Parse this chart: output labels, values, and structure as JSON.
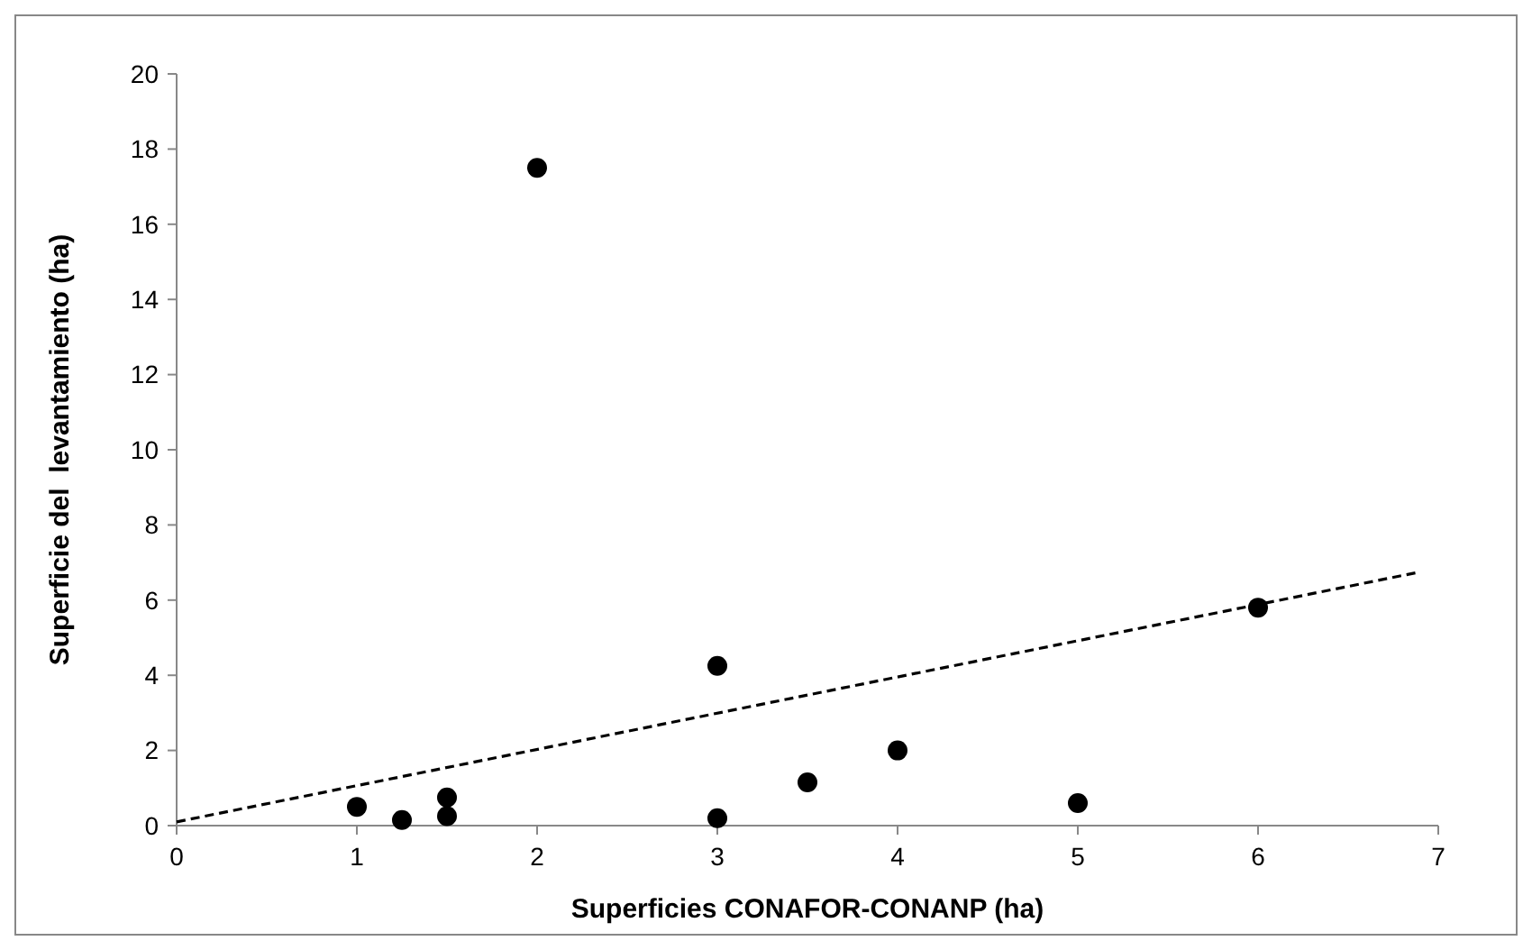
{
  "chart_data": {
    "type": "scatter",
    "xlabel": "Superficies CONAFOR-CONANP (ha)",
    "ylabel": "Superficie del  levantamiento (ha)",
    "xlim": [
      0,
      7
    ],
    "ylim": [
      0,
      20
    ],
    "xticks": [
      0,
      1,
      2,
      3,
      4,
      5,
      6,
      7
    ],
    "yticks": [
      0,
      2,
      4,
      6,
      8,
      10,
      12,
      14,
      16,
      18,
      20
    ],
    "grid": false,
    "marker": "circle",
    "series": [
      {
        "color": "#000000",
        "x": [
          1,
          1.25,
          1.5,
          1.5,
          2,
          3,
          3,
          3.5,
          4,
          5,
          6
        ],
        "values": [
          0.5,
          0.15,
          0.75,
          0.25,
          17.5,
          4.25,
          0.2,
          1.15,
          2,
          0.6,
          5.8
        ]
      },
      {
        "type": "line",
        "color": "#000000",
        "line_style": "dashed",
        "marker": "none",
        "x": [
          0,
          6.9
        ],
        "values": [
          0.1,
          6.75
        ]
      }
    ]
  }
}
